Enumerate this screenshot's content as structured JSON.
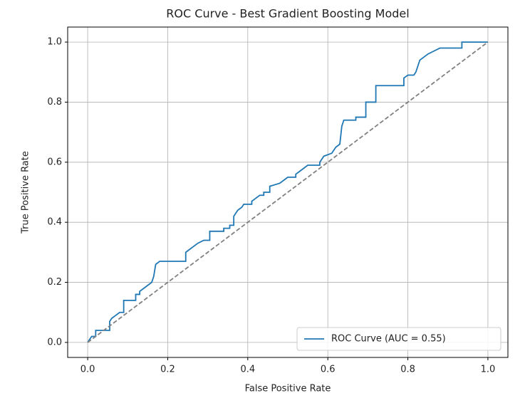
{
  "chart_data": {
    "type": "line",
    "title": "ROC Curve - Best Gradient Boosting Model",
    "x_label": "False Positive Rate",
    "y_label": "True Positive Rate",
    "xlim": [
      -0.05,
      1.05
    ],
    "ylim": [
      -0.05,
      1.05
    ],
    "xticks": [
      {
        "value": 0,
        "label": "0.0"
      },
      {
        "value": 0.2,
        "label": "0.2"
      },
      {
        "value": 0.4,
        "label": "0.4"
      },
      {
        "value": 0.6,
        "label": "0.6"
      },
      {
        "value": 0.8,
        "label": "0.8"
      },
      {
        "value": 1,
        "label": "1.0"
      }
    ],
    "yticks": [
      {
        "value": 0,
        "label": "0.0"
      },
      {
        "value": 0.2,
        "label": "0.2"
      },
      {
        "value": 0.4,
        "label": "0.4"
      },
      {
        "value": 0.6,
        "label": "0.6"
      },
      {
        "value": 0.8,
        "label": "0.8"
      },
      {
        "value": 1,
        "label": "1.0"
      }
    ],
    "grid": true,
    "legend": "lower right",
    "series": [
      {
        "name": "ROC Curve (AUC = 0.55)",
        "color": "#1f77b4",
        "style": "solid",
        "x": [
          0,
          0.01,
          0.02,
          0.02,
          0.055,
          0.055,
          0.06,
          0.07,
          0.08,
          0.09,
          0.09,
          0.12,
          0.12,
          0.13,
          0.13,
          0.14,
          0.15,
          0.16,
          0.165,
          0.17,
          0.18,
          0.245,
          0.245,
          0.255,
          0.265,
          0.275,
          0.29,
          0.305,
          0.305,
          0.34,
          0.34,
          0.355,
          0.355,
          0.365,
          0.365,
          0.375,
          0.385,
          0.39,
          0.41,
          0.41,
          0.42,
          0.43,
          0.44,
          0.44,
          0.455,
          0.455,
          0.48,
          0.49,
          0.5,
          0.52,
          0.52,
          0.53,
          0.54,
          0.55,
          0.58,
          0.58,
          0.59,
          0.61,
          0.62,
          0.63,
          0.635,
          0.64,
          0.67,
          0.67,
          0.695,
          0.695,
          0.72,
          0.72,
          0.79,
          0.79,
          0.8,
          0.815,
          0.82,
          0.83,
          0.84,
          0.85,
          0.865,
          0.88,
          0.935,
          0.935,
          1
        ],
        "values": [
          0,
          0.02,
          0.02,
          0.04,
          0.04,
          0.07,
          0.08,
          0.09,
          0.1,
          0.1,
          0.14,
          0.14,
          0.16,
          0.16,
          0.17,
          0.18,
          0.19,
          0.2,
          0.22,
          0.26,
          0.27,
          0.27,
          0.3,
          0.31,
          0.32,
          0.33,
          0.34,
          0.34,
          0.37,
          0.37,
          0.38,
          0.38,
          0.39,
          0.39,
          0.42,
          0.44,
          0.45,
          0.46,
          0.46,
          0.47,
          0.48,
          0.49,
          0.49,
          0.5,
          0.5,
          0.52,
          0.53,
          0.54,
          0.55,
          0.55,
          0.56,
          0.57,
          0.58,
          0.59,
          0.59,
          0.6,
          0.62,
          0.63,
          0.65,
          0.66,
          0.72,
          0.74,
          0.74,
          0.75,
          0.75,
          0.8,
          0.8,
          0.855,
          0.855,
          0.88,
          0.89,
          0.89,
          0.9,
          0.94,
          0.95,
          0.96,
          0.97,
          0.98,
          0.98,
          1,
          1
        ]
      },
      {
        "color": "#808080",
        "style": "dashed",
        "x": [
          0,
          1
        ],
        "values": [
          0,
          1
        ]
      }
    ]
  }
}
